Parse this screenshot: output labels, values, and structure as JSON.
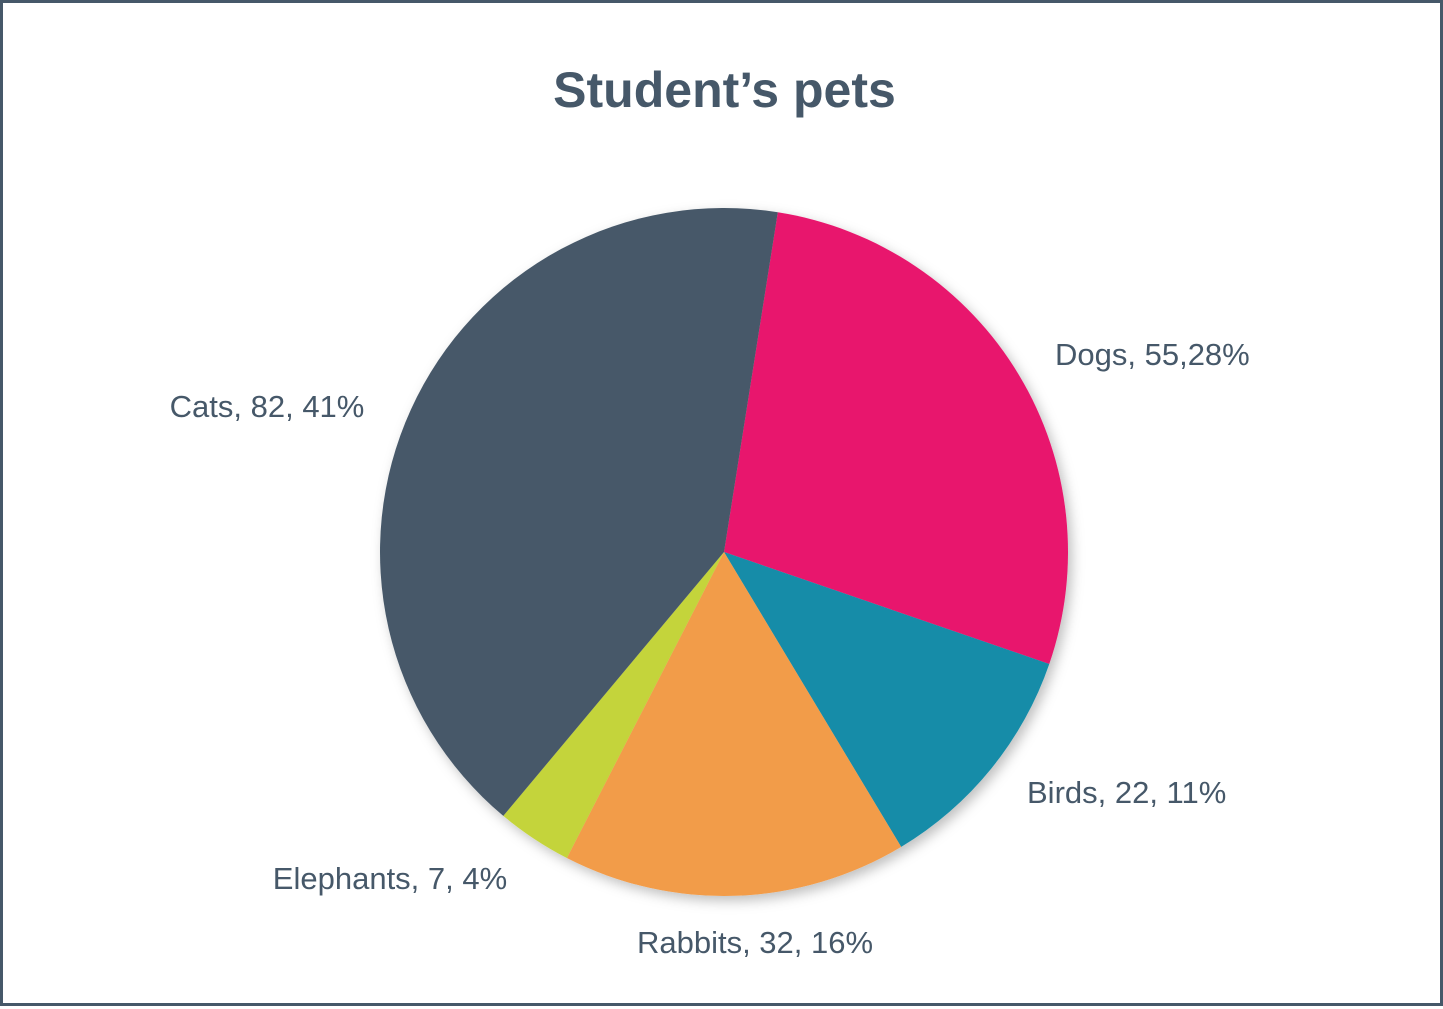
{
  "chart_data": {
    "type": "pie",
    "title": "Student’s pets",
    "slices": [
      {
        "name": "Dogs",
        "value": 55,
        "percent": 28,
        "label": "Dogs, 55,28%",
        "color": "#e8186d"
      },
      {
        "name": "Birds",
        "value": 22,
        "percent": 11,
        "label": "Birds, 22, 11%",
        "color": "#128ca8"
      },
      {
        "name": "Rabbits",
        "value": 32,
        "percent": 16,
        "label": "Rabbits, 32, 16%",
        "color": "#f29c4a"
      },
      {
        "name": "Elephants",
        "value": 7,
        "percent": 4,
        "label": "Elephants, 7, 4%",
        "color": "#c4d43a"
      },
      {
        "name": "Cats",
        "value": 82,
        "percent": 41,
        "label": "Cats, 82, 41%",
        "color": "#465869"
      }
    ],
    "start_angle_deg": 9,
    "direction": "clockwise",
    "legend": "none",
    "data_labels": "outside"
  },
  "colors": {
    "frame_border": "#465869",
    "text": "#465869",
    "background": "#ffffff"
  }
}
